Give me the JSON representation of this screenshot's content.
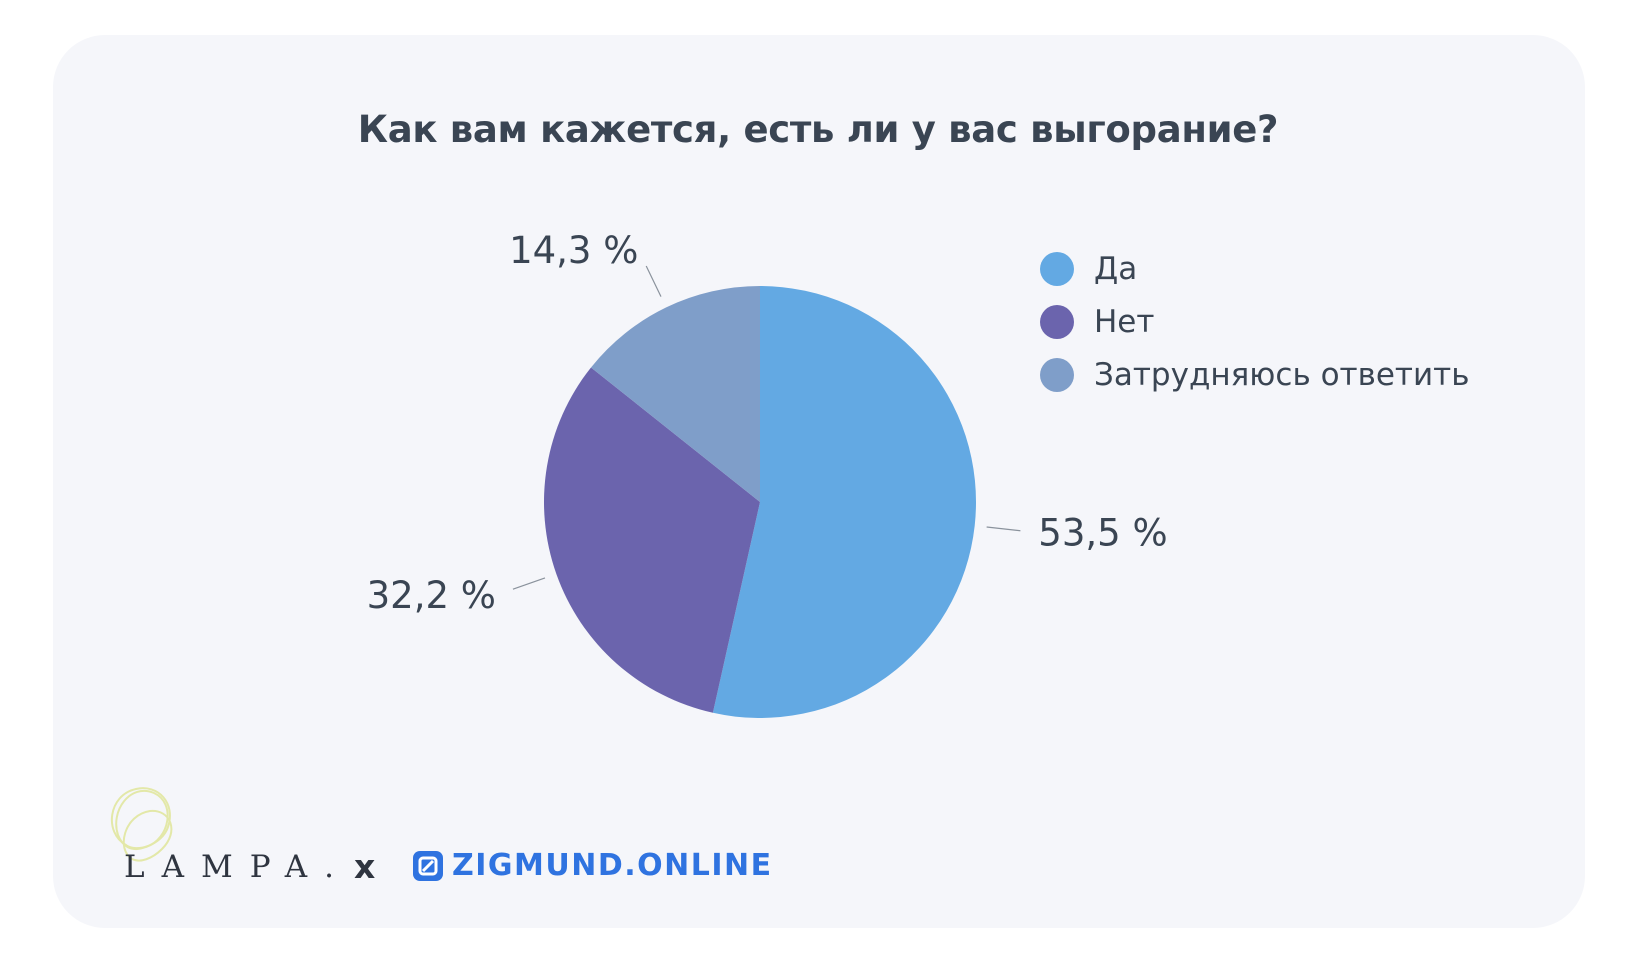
{
  "chart_data": {
    "type": "pie",
    "title": "Как вам кажется, есть ли у вас выгорание?",
    "categories": [
      "Да",
      "Нет",
      "Затрудняюсь ответить"
    ],
    "values": [
      53.5,
      32.2,
      14.3
    ],
    "labels": [
      "53,5 %",
      "32,2 %",
      "14,3 %"
    ],
    "colors": [
      "#63a9e3",
      "#6b64ad",
      "#7f9ec9"
    ],
    "legend_position": "right",
    "start_angle_deg": 0,
    "direction": "clockwise"
  },
  "footer": {
    "brand_left": "LAMPA.",
    "separator": "x",
    "brand_right": "ZIGMUND.ONLINE"
  },
  "colors": {
    "card_background": "#f5f6fa",
    "text": "#3a4553",
    "brand_blue": "#2f73e0"
  },
  "icons": {
    "zigmund_logo": "square-slash-icon",
    "lampa_logo": "scribble-circle-icon"
  }
}
